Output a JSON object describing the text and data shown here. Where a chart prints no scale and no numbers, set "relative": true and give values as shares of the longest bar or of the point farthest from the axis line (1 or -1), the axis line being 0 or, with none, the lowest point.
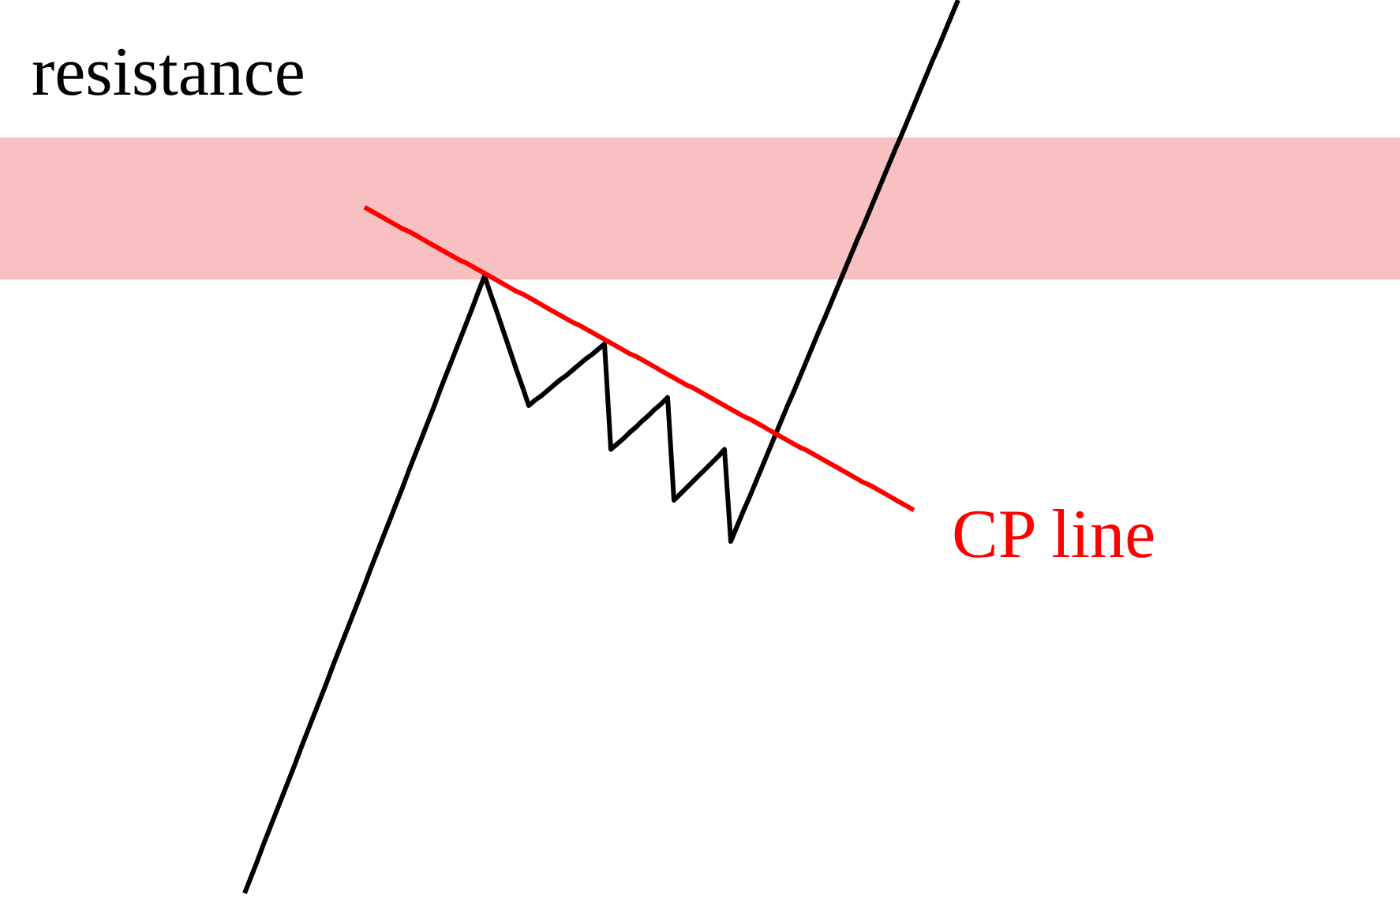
{
  "chart_data": {
    "type": "line",
    "relative": true,
    "categories": [
      null,
      null,
      null,
      null,
      null,
      null,
      null,
      null,
      null,
      null,
      null,
      null,
      null,
      null,
      null,
      null,
      null,
      null,
      null,
      null,
      null,
      null,
      null,
      null,
      null,
      null,
      null,
      null,
      null,
      null,
      null,
      null,
      null,
      null,
      null,
      null,
      null,
      null,
      null,
      null,
      null,
      null,
      null,
      null,
      null,
      null,
      null,
      null,
      null,
      null,
      null,
      null,
      null,
      null,
      null,
      null,
      null,
      null,
      null,
      null,
      null,
      null,
      null,
      null,
      null,
      null,
      null,
      null,
      null,
      null,
      null,
      null,
      null,
      null,
      null,
      null,
      null,
      null,
      null,
      null,
      null,
      null,
      null,
      null,
      null,
      null,
      null,
      null,
      null,
      null,
      null,
      null,
      null,
      null,
      null,
      null,
      null,
      null,
      null,
      null,
      null,
      null,
      null,
      null,
      null,
      null,
      null,
      null,
      null,
      null,
      null,
      null,
      null,
      null
    ],
    "series": [
      {
        "color": "#000000",
        "values": [
          0,
          0.018,
          0.036,
          0.055,
          0.073,
          0.091,
          0.109,
          0.127,
          0.145,
          0.164,
          0.182,
          0.2,
          0.218,
          0.236,
          0.255,
          0.273,
          0.291,
          0.309,
          0.327,
          0.345,
          0.364,
          0.382,
          0.4,
          0.418,
          0.436,
          0.454,
          0.473,
          0.491,
          0.509,
          0.527,
          0.545,
          0.564,
          0.582,
          0.6,
          0.618,
          0.636,
          0.654,
          0.673,
          0.691,
          0.67,
          0.65,
          0.629,
          0.608,
          0.587,
          0.567,
          0.546,
          0.552,
          0.557,
          0.563,
          0.569,
          0.575,
          0.58,
          0.586,
          0.592,
          0.598,
          0.603,
          0.609,
          0.615,
          0.497,
          0.503,
          0.509,
          0.516,
          0.522,
          0.529,
          0.535,
          0.542,
          0.548,
          0.555,
          0.44,
          0.447,
          0.454,
          0.461,
          0.468,
          0.475,
          0.482,
          0.489,
          0.497,
          0.394,
          0.411,
          0.428,
          0.444,
          0.461,
          0.478,
          0.495,
          0.512,
          0.529,
          0.546,
          0.562,
          0.579,
          0.596,
          0.613,
          0.63,
          0.646,
          0.663,
          0.68,
          0.697,
          0.714,
          0.731,
          0.747,
          0.764,
          0.781,
          0.798,
          0.815,
          0.832,
          0.848,
          0.865,
          0.882,
          0.899,
          0.916,
          0.933,
          0.949,
          0.966,
          0.983,
          1
        ]
      },
      {
        "name": "CP line",
        "type": "line",
        "color": "#ff0000",
        "values": [
          null,
          null,
          null,
          null,
          null,
          null,
          null,
          null,
          null,
          null,
          null,
          null,
          null,
          null,
          null,
          null,
          null,
          null,
          null,
          0.768,
          0.764,
          0.76,
          0.756,
          0.752,
          0.748,
          0.744,
          0.741,
          0.737,
          0.733,
          0.729,
          0.725,
          0.721,
          0.717,
          0.713,
          0.709,
          0.706,
          0.702,
          0.698,
          0.694,
          0.69,
          0.686,
          0.682,
          0.678,
          0.674,
          0.671,
          0.667,
          0.663,
          0.659,
          0.655,
          0.651,
          0.647,
          0.643,
          0.639,
          0.636,
          0.632,
          0.628,
          0.624,
          0.62,
          0.616,
          0.612,
          0.608,
          0.604,
          0.601,
          0.597,
          0.593,
          0.589,
          0.585,
          0.581,
          0.577,
          0.573,
          0.569,
          0.566,
          0.562,
          0.558,
          0.554,
          0.55,
          0.546,
          0.542,
          0.538,
          0.534,
          0.531,
          0.527,
          0.523,
          0.519,
          0.515,
          0.511,
          0.507,
          0.503,
          0.499,
          0.496,
          0.492,
          0.488,
          0.484,
          0.48,
          0.476,
          0.472,
          0.468,
          0.464,
          0.46,
          0.457,
          0.453,
          0.449,
          0.445,
          0.441,
          0.437,
          0.433,
          0.429,
          null,
          null,
          null,
          null,
          null,
          null,
          null
        ]
      }
    ],
    "bands": [
      {
        "axis": "y",
        "from": 0.687,
        "to": 0.846,
        "label": "resistance",
        "color": "#f9c0c2"
      }
    ]
  }
}
